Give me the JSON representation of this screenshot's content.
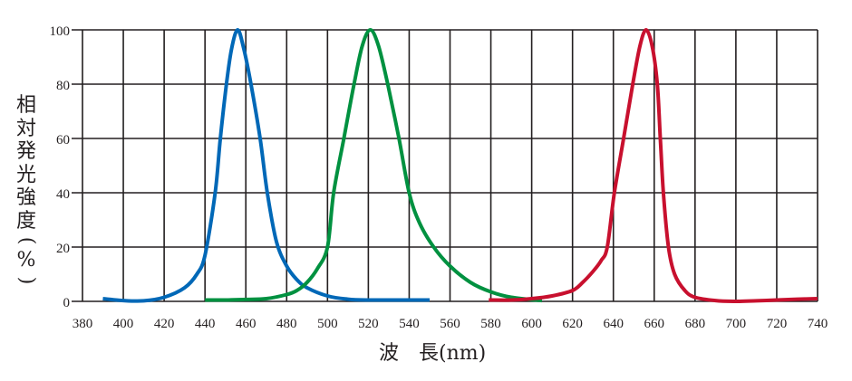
{
  "chart_data": {
    "type": "line",
    "title": "",
    "xlabel": "波　長(nm)",
    "ylabel": "相対発光強度(%)",
    "xlim": [
      380,
      740
    ],
    "ylim": [
      0,
      100
    ],
    "xticks": [
      380,
      400,
      420,
      440,
      460,
      480,
      500,
      520,
      540,
      560,
      580,
      600,
      620,
      640,
      660,
      680,
      700,
      720,
      740
    ],
    "yticks": [
      0,
      20,
      40,
      60,
      80,
      100
    ],
    "grid": true,
    "legend": null,
    "series": [
      {
        "name": "Blue",
        "color": "#0068b7",
        "peak_nm": 456,
        "x": [
          390,
          400,
          410,
          420,
          430,
          436,
          440,
          445,
          447.5,
          450.5,
          453,
          456,
          459,
          462.5,
          467,
          470.5,
          475,
          480,
          485,
          490,
          500,
          510,
          520,
          530,
          540,
          550
        ],
        "y": [
          1,
          0.3,
          0.2,
          1.5,
          5,
          10,
          17,
          40,
          60,
          80,
          93,
          100,
          93,
          80,
          60,
          40,
          22,
          13,
          8,
          5,
          2,
          0.8,
          0.5,
          0.5,
          0.5,
          0.5
        ]
      },
      {
        "name": "Green",
        "color": "#009140",
        "peak_nm": 521,
        "x": [
          440,
          450,
          460,
          470,
          480,
          485,
          490,
          495,
          500,
          503,
          508,
          513,
          517,
          521,
          525,
          529.5,
          535,
          540,
          545,
          552,
          560,
          570,
          580,
          590,
          605
        ],
        "y": [
          0.5,
          0.5,
          0.7,
          1,
          2.5,
          4,
          7,
          12,
          20,
          40,
          60,
          80,
          94,
          100,
          94,
          80,
          60,
          40,
          29,
          20,
          13,
          7,
          3.5,
          1.5,
          0.3
        ]
      },
      {
        "name": "Red",
        "color": "#c8102e",
        "peak_nm": 656,
        "x": [
          579,
          590,
          600,
          610,
          620,
          625,
          630,
          634,
          637,
          640.5,
          645,
          649.5,
          653,
          656,
          659,
          661.5,
          663,
          664.5,
          667,
          670,
          675,
          680,
          690,
          700,
          710,
          720,
          730,
          740
        ],
        "y": [
          0.5,
          0.5,
          1,
          2,
          4,
          7,
          11,
          15,
          20,
          40,
          60,
          80,
          94,
          100,
          94,
          80,
          60,
          40,
          20,
          10,
          4,
          1.5,
          0.3,
          0,
          0.2,
          0.5,
          0.8,
          1
        ]
      }
    ]
  },
  "axes": {
    "ylabel_chars": [
      "相",
      "対",
      "発",
      "光",
      "強",
      "度",
      "(",
      "%",
      ")"
    ],
    "xlabel_text": "波　長(nm)"
  }
}
